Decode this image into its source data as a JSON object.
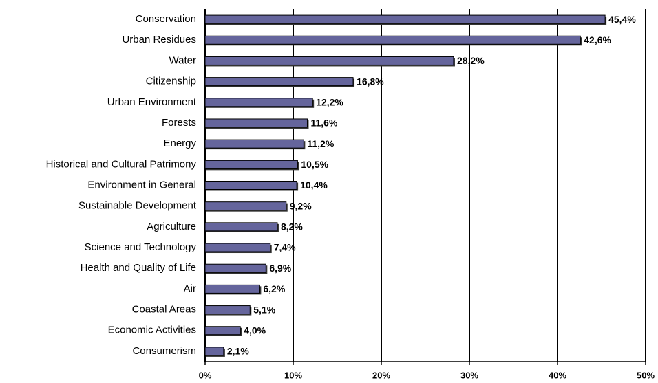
{
  "chart_data": {
    "type": "barh",
    "categories": [
      "Conservation",
      "Urban Residues",
      "Water",
      "Citizenship",
      "Urban Environment",
      "Forests",
      "Energy",
      "Historical and Cultural Patrimony",
      "Environment in General",
      "Sustainable Development",
      "Agriculture",
      "Science and Technology",
      "Health and Quality of Life",
      "Air",
      "Coastal Areas",
      "Economic Activities",
      "Consumerism"
    ],
    "values": [
      45.4,
      42.6,
      28.2,
      16.8,
      12.2,
      11.6,
      11.2,
      10.5,
      10.4,
      9.2,
      8.2,
      7.4,
      6.9,
      6.2,
      5.1,
      4.0,
      2.1
    ],
    "value_labels": [
      "45,4%",
      "42,6%",
      "28,2%",
      "16,8%",
      "12,2%",
      "11,6%",
      "11,2%",
      "10,5%",
      "10,4%",
      "9,2%",
      "8,2%",
      "7,4%",
      "6,9%",
      "6,2%",
      "5,1%",
      "4,0%",
      "2,1%"
    ],
    "color": "#65659c",
    "xlim": [
      0,
      50
    ],
    "xticks": [
      {
        "value": 0,
        "label": "0%"
      },
      {
        "value": 10,
        "label": "10%"
      },
      {
        "value": 20,
        "label": "20%"
      },
      {
        "value": 30,
        "label": "30%"
      },
      {
        "value": 40,
        "label": "40%"
      },
      {
        "value": 50,
        "label": "50%"
      }
    ],
    "grid": true
  }
}
